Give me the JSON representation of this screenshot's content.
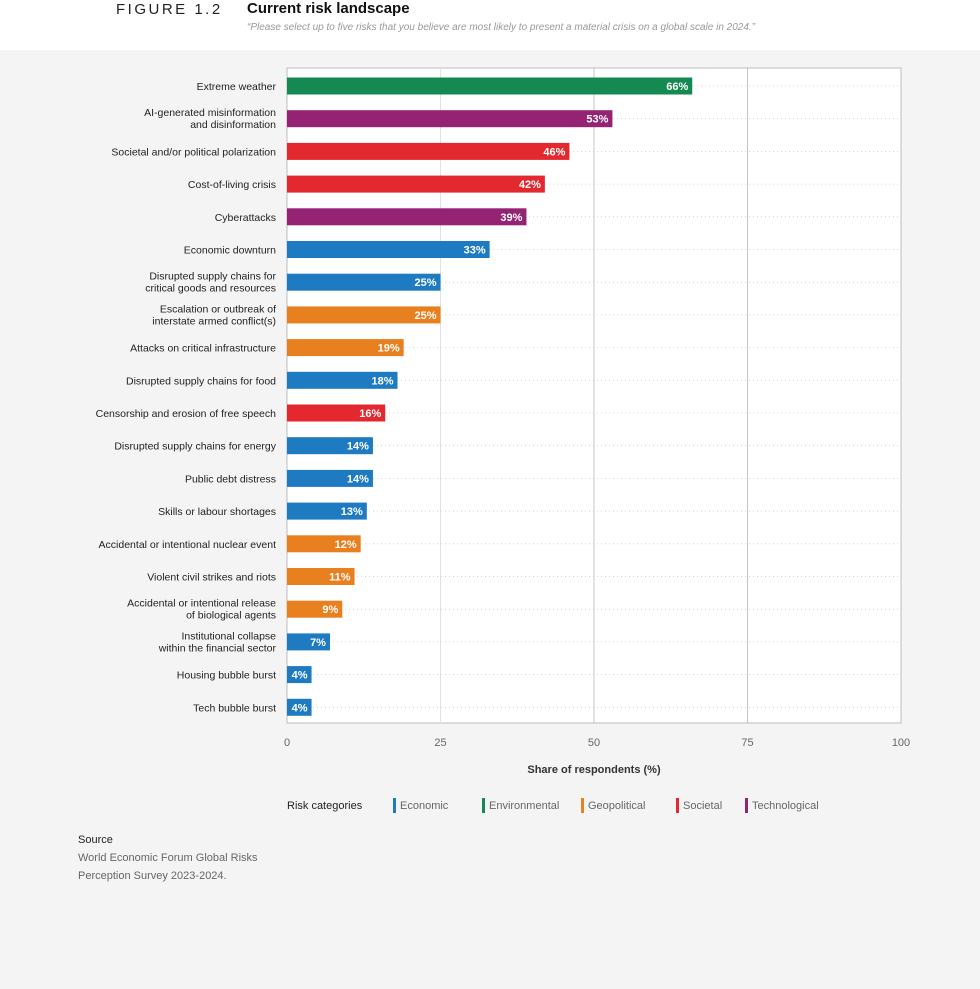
{
  "figure": {
    "label": "FIGURE 1.2",
    "title": "Current risk landscape",
    "subtitle": "“Please select up to five risks that you believe are most likely to present a material crisis on a global scale in 2024.”"
  },
  "source": {
    "title": "Source",
    "line1": "World Economic Forum Global Risks",
    "line2": "Perception Survey 2023-2024."
  },
  "chart_data": {
    "type": "bar",
    "orientation": "horizontal",
    "xlabel": "Share of respondents (%)",
    "xlim": [
      0,
      100
    ],
    "xticks": [
      0,
      25,
      50,
      75,
      100
    ],
    "value_suffix": "%",
    "legend_title": "Risk categories",
    "legend_placement": "bottom",
    "categories_legend": [
      {
        "name": "Economic",
        "color": "#1f7bc1"
      },
      {
        "name": "Environmental",
        "color": "#148a52"
      },
      {
        "name": "Geopolitical",
        "color": "#e8801f"
      },
      {
        "name": "Societal",
        "color": "#e3292f"
      },
      {
        "name": "Technological",
        "color": "#942373"
      }
    ],
    "bars": [
      {
        "label": [
          "Extreme weather"
        ],
        "value": 66,
        "category": "Environmental"
      },
      {
        "label": [
          "AI-generated misinformation",
          "and disinformation"
        ],
        "value": 53,
        "category": "Technological"
      },
      {
        "label": [
          "Societal and/or political polarization"
        ],
        "value": 46,
        "category": "Societal"
      },
      {
        "label": [
          "Cost-of-living crisis"
        ],
        "value": 42,
        "category": "Societal"
      },
      {
        "label": [
          "Cyberattacks"
        ],
        "value": 39,
        "category": "Technological"
      },
      {
        "label": [
          "Economic downturn"
        ],
        "value": 33,
        "category": "Economic"
      },
      {
        "label": [
          "Disrupted supply chains for",
          "critical goods and resources"
        ],
        "value": 25,
        "category": "Economic"
      },
      {
        "label": [
          "Escalation or outbreak of",
          "interstate armed conflict(s)"
        ],
        "value": 25,
        "category": "Geopolitical"
      },
      {
        "label": [
          "Attacks on critical infrastructure"
        ],
        "value": 19,
        "category": "Geopolitical"
      },
      {
        "label": [
          "Disrupted supply chains for food"
        ],
        "value": 18,
        "category": "Economic"
      },
      {
        "label": [
          "Censorship and erosion of free speech"
        ],
        "value": 16,
        "category": "Societal"
      },
      {
        "label": [
          "Disrupted supply chains for energy"
        ],
        "value": 14,
        "category": "Economic"
      },
      {
        "label": [
          "Public debt distress"
        ],
        "value": 14,
        "category": "Economic"
      },
      {
        "label": [
          "Skills or labour shortages"
        ],
        "value": 13,
        "category": "Economic"
      },
      {
        "label": [
          "Accidental or intentional nuclear event"
        ],
        "value": 12,
        "category": "Geopolitical"
      },
      {
        "label": [
          "Violent civil strikes and riots"
        ],
        "value": 11,
        "category": "Geopolitical"
      },
      {
        "label": [
          "Accidental or intentional release",
          "of biological agents"
        ],
        "value": 9,
        "category": "Geopolitical"
      },
      {
        "label": [
          "Institutional collapse",
          "within the financial sector"
        ],
        "value": 7,
        "category": "Economic"
      },
      {
        "label": [
          "Housing bubble burst"
        ],
        "value": 4,
        "category": "Economic"
      },
      {
        "label": [
          "Tech bubble burst"
        ],
        "value": 4,
        "category": "Economic"
      }
    ]
  }
}
